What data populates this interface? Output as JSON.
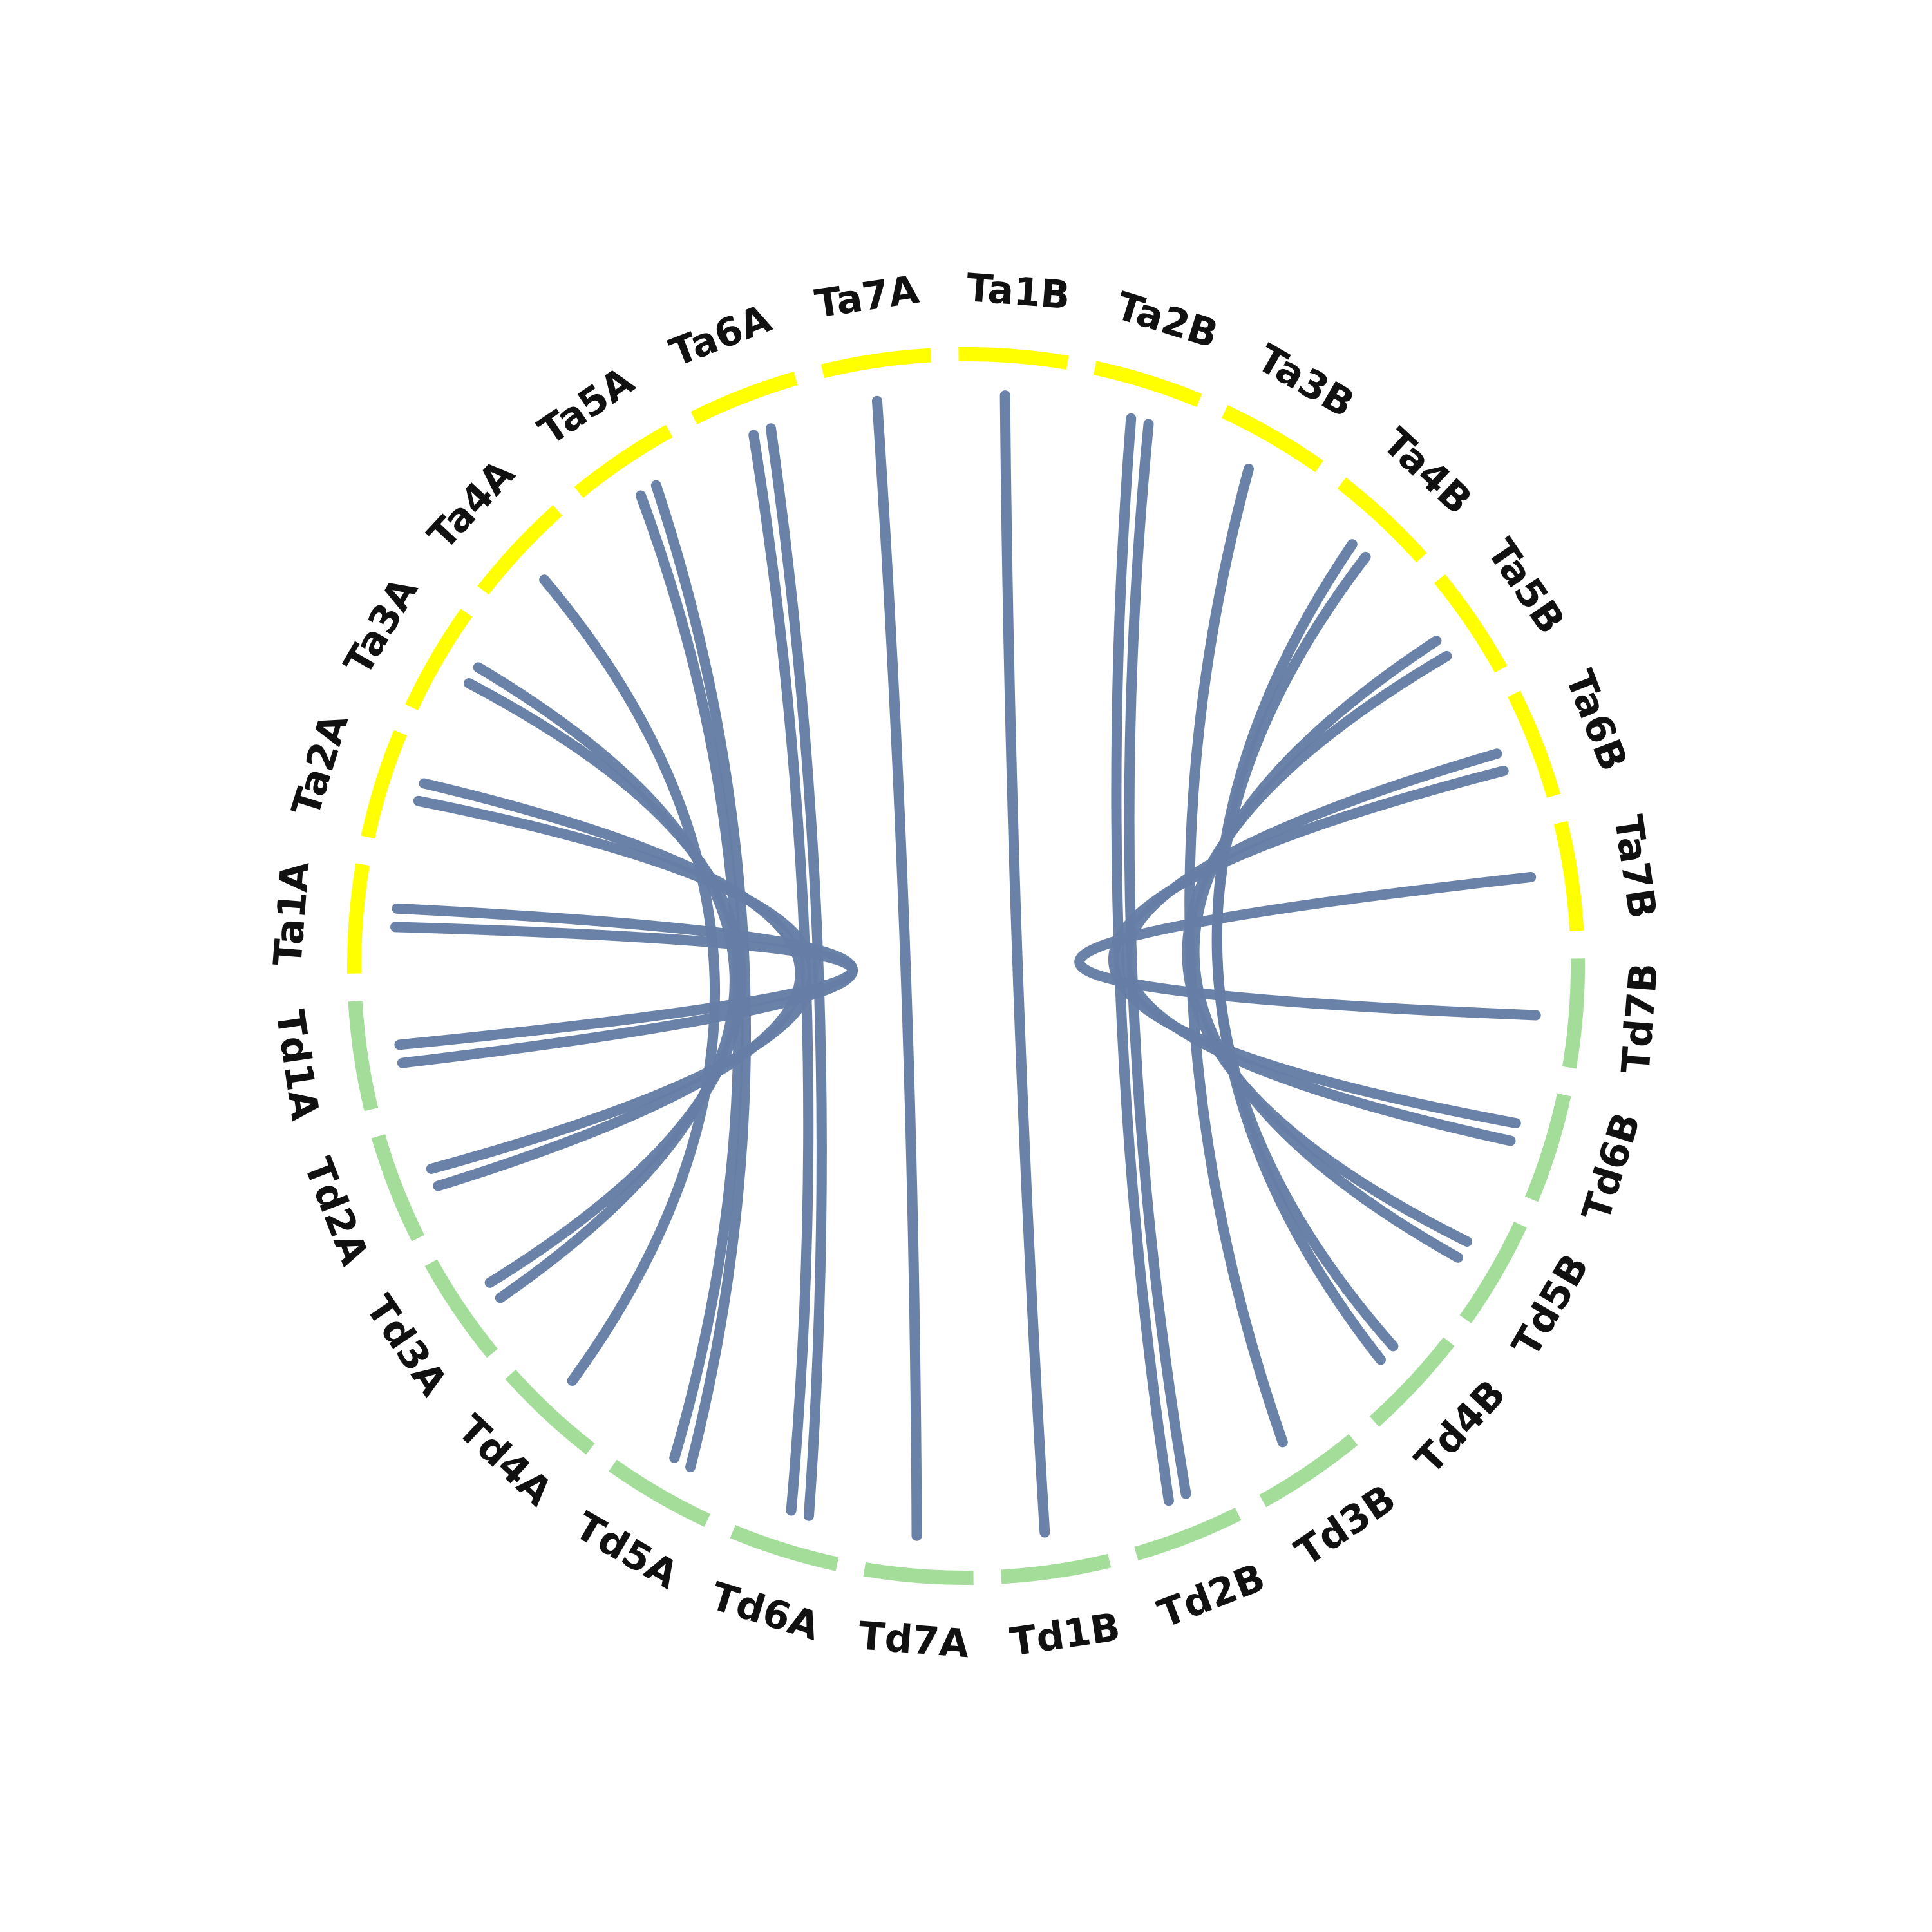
{
  "diagram": {
    "type": "circos-synteny",
    "colors": {
      "genome_a": "#a4dd9a",
      "genome_b": "#ffff00",
      "link": "#667ea5",
      "label": "#111111"
    },
    "chromosomes": [
      {
        "id": "Ta1A",
        "label": "Ta1A",
        "genome": "b"
      },
      {
        "id": "Ta2A",
        "label": "Ta2A",
        "genome": "b"
      },
      {
        "id": "Ta3A",
        "label": "Ta3A",
        "genome": "b"
      },
      {
        "id": "Ta4A",
        "label": "Ta4A",
        "genome": "b"
      },
      {
        "id": "Ta5A",
        "label": "Ta5A",
        "genome": "b"
      },
      {
        "id": "Ta6A",
        "label": "Ta6A",
        "genome": "b"
      },
      {
        "id": "Ta7A",
        "label": "Ta7A",
        "genome": "b"
      },
      {
        "id": "Ta1B",
        "label": "Ta1B",
        "genome": "b"
      },
      {
        "id": "Ta2B",
        "label": "Ta2B",
        "genome": "b"
      },
      {
        "id": "Ta3B",
        "label": "Ta3B",
        "genome": "b"
      },
      {
        "id": "Ta4B",
        "label": "Ta4B",
        "genome": "b"
      },
      {
        "id": "Ta5B",
        "label": "Ta5B",
        "genome": "b"
      },
      {
        "id": "Ta6B",
        "label": "Ta6B",
        "genome": "b"
      },
      {
        "id": "Ta7B",
        "label": "Ta7B",
        "genome": "b"
      },
      {
        "id": "Td7B",
        "label": "Td7B",
        "genome": "a"
      },
      {
        "id": "Td6B",
        "label": "Td6B",
        "genome": "a"
      },
      {
        "id": "Td5B",
        "label": "Td5B",
        "genome": "a"
      },
      {
        "id": "Td4B",
        "label": "Td4B",
        "genome": "a"
      },
      {
        "id": "Td3B",
        "label": "Td3B",
        "genome": "a"
      },
      {
        "id": "Td2B",
        "label": "Td2B",
        "genome": "a"
      },
      {
        "id": "Td1B",
        "label": "Td1B",
        "genome": "a"
      },
      {
        "id": "Td7A",
        "label": "Td7A",
        "genome": "a"
      },
      {
        "id": "Td6A",
        "label": "Td6A",
        "genome": "a"
      },
      {
        "id": "Td5A",
        "label": "Td5A",
        "genome": "a"
      },
      {
        "id": "Td4A",
        "label": "Td4A",
        "genome": "a"
      },
      {
        "id": "Td3A",
        "label": "Td3A",
        "genome": "a"
      },
      {
        "id": "Td2A",
        "label": "Td2A",
        "genome": "a"
      },
      {
        "id": "Td1A",
        "label": "Td1A",
        "genome": "a"
      }
    ],
    "links": [
      {
        "from": "Td1A",
        "to": "Ta1A"
      },
      {
        "from": "Td1A",
        "to": "Ta1A"
      },
      {
        "from": "Td2A",
        "to": "Ta2A"
      },
      {
        "from": "Td2A",
        "to": "Ta2A"
      },
      {
        "from": "Td3A",
        "to": "Ta3A"
      },
      {
        "from": "Td3A",
        "to": "Ta3A"
      },
      {
        "from": "Td4A",
        "to": "Ta4A"
      },
      {
        "from": "Td5A",
        "to": "Ta5A"
      },
      {
        "from": "Td5A",
        "to": "Ta5A"
      },
      {
        "from": "Td6A",
        "to": "Ta6A"
      },
      {
        "from": "Td6A",
        "to": "Ta6A"
      },
      {
        "from": "Td7A",
        "to": "Ta7A"
      },
      {
        "from": "Td1B",
        "to": "Ta1B"
      },
      {
        "from": "Td2B",
        "to": "Ta2B"
      },
      {
        "from": "Td2B",
        "to": "Ta2B"
      },
      {
        "from": "Td3B",
        "to": "Ta3B"
      },
      {
        "from": "Td4B",
        "to": "Ta4B"
      },
      {
        "from": "Td4B",
        "to": "Ta4B"
      },
      {
        "from": "Td5B",
        "to": "Ta5B"
      },
      {
        "from": "Td5B",
        "to": "Ta5B"
      },
      {
        "from": "Td6B",
        "to": "Ta6B"
      },
      {
        "from": "Td6B",
        "to": "Ta6B"
      },
      {
        "from": "Td7B",
        "to": "Ta7B"
      }
    ]
  }
}
